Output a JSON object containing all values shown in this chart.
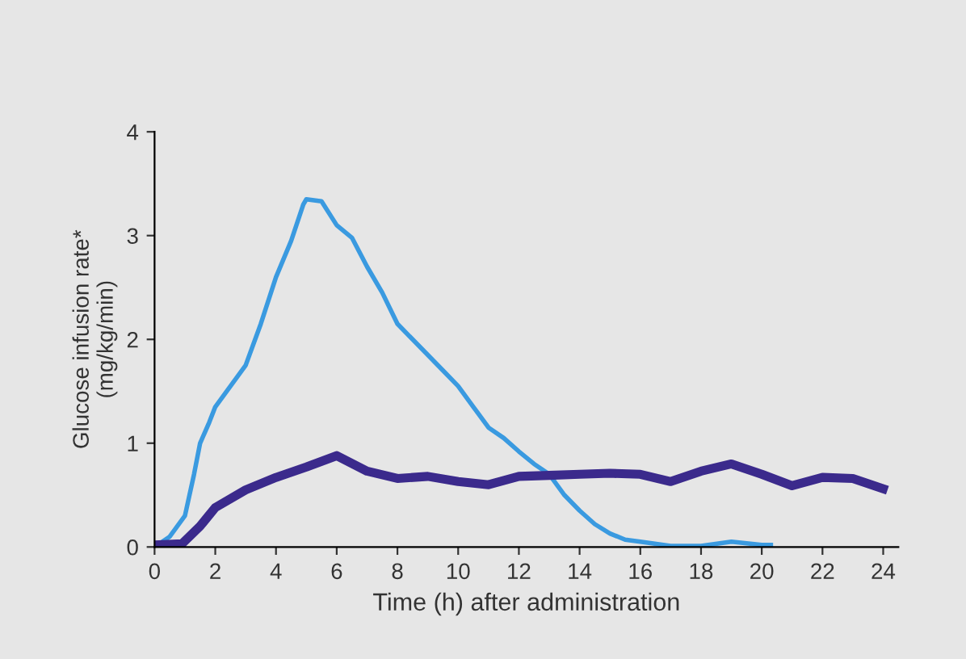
{
  "chart_data": {
    "type": "line",
    "xlabel": "Time (h) after administration",
    "ylabel": "Glucose infusion rate*\n(mg/kg/min)",
    "xlim": [
      0,
      24.5
    ],
    "xticks": [
      0,
      2,
      4,
      6,
      8,
      10,
      12,
      14,
      16,
      18,
      20,
      22,
      24
    ],
    "ylim": [
      0,
      4
    ],
    "yticks": [
      0,
      1,
      2,
      3,
      4
    ],
    "grid": false,
    "legend": false,
    "series": [
      {
        "color": "#3a9ae0",
        "x": [
          0,
          0.5,
          1,
          1.3,
          1.5,
          1.8,
          2,
          2.5,
          3,
          3.5,
          4,
          4.5,
          4.9,
          5,
          5.5,
          6,
          6.5,
          7,
          7.5,
          8,
          8.5,
          9,
          9.5,
          10,
          10.5,
          11,
          11.5,
          12,
          12.5,
          13,
          13.5,
          14,
          14.5,
          15,
          15.5,
          16,
          17,
          18,
          19,
          20,
          20.3
        ],
        "values": [
          0,
          0.1,
          0.3,
          0.7,
          1.0,
          1.2,
          1.35,
          1.55,
          1.75,
          2.15,
          2.6,
          2.95,
          3.3,
          3.35,
          3.33,
          3.1,
          2.98,
          2.7,
          2.45,
          2.15,
          2.0,
          1.85,
          1.7,
          1.55,
          1.35,
          1.15,
          1.05,
          0.92,
          0.8,
          0.7,
          0.5,
          0.35,
          0.22,
          0.13,
          0.07,
          0.05,
          0.01,
          0.01,
          0.05,
          0.02,
          0.02
        ]
      },
      {
        "color": "#3b2a8c",
        "x": [
          0,
          0.9,
          1.5,
          2,
          3,
          4,
          5,
          6,
          7,
          8,
          9,
          10,
          11,
          12,
          13,
          14,
          15,
          16,
          17,
          18,
          19,
          20,
          21,
          22,
          23,
          24
        ],
        "values": [
          0.02,
          0.03,
          0.2,
          0.38,
          0.55,
          0.67,
          0.77,
          0.88,
          0.73,
          0.66,
          0.68,
          0.63,
          0.6,
          0.68,
          0.69,
          0.7,
          0.71,
          0.7,
          0.63,
          0.73,
          0.8,
          0.7,
          0.59,
          0.67,
          0.66,
          0.56
        ]
      }
    ]
  }
}
